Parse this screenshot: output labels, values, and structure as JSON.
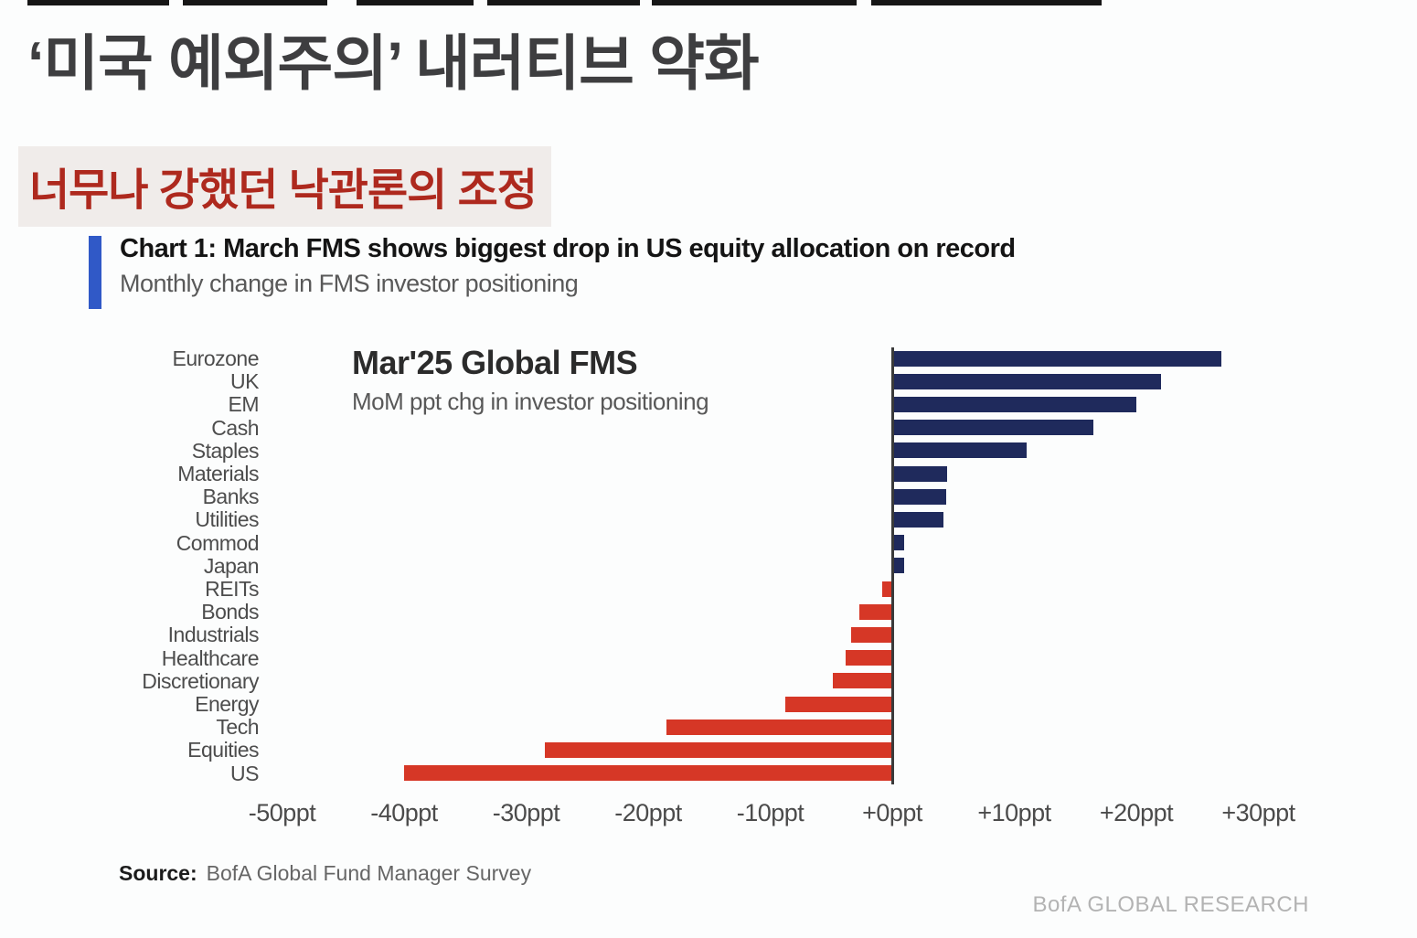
{
  "page": {
    "main_title": "‘미국 예외주의’ 내러티브 약화",
    "highlight_title": "너무나 강했던 낙관론의 조정"
  },
  "chart_header": {
    "title": "Chart 1: March FMS shows biggest drop in US equity allocation on record",
    "subtitle": "Monthly change in FMS investor positioning",
    "accent_color": "#3059c7"
  },
  "chart_data": {
    "type": "bar",
    "orientation": "horizontal",
    "title": "Mar'25 Global FMS",
    "subtitle": "MoM ppt chg in investor positioning",
    "categories": [
      "Eurozone",
      "UK",
      "EM",
      "Cash",
      "Staples",
      "Materials",
      "Banks",
      "Utilities",
      "Commod",
      "Japan",
      "REITs",
      "Bonds",
      "Industrials",
      "Healthcare",
      "Discretionary",
      "Energy",
      "Tech",
      "Equities",
      "US"
    ],
    "values": [
      27,
      22,
      20,
      16.5,
      11,
      4.5,
      4.4,
      4.2,
      1,
      1,
      -0.8,
      -2.7,
      -3.4,
      -3.8,
      -4.9,
      -8.8,
      -18.5,
      -28.5,
      -40
    ],
    "unit": "ppt",
    "x_tick_labels": [
      "-50ppt",
      "-40ppt",
      "-30ppt",
      "-20ppt",
      "-10ppt",
      "+0ppt",
      "+10ppt",
      "+20ppt",
      "+30ppt"
    ],
    "x_tick_values": [
      -50,
      -40,
      -30,
      -20,
      -10,
      0,
      10,
      20,
      30
    ],
    "xlim": [
      -50,
      33
    ],
    "grid": false,
    "legend": "none",
    "positive_color": "#1f2a5c",
    "negative_color": "#d63726",
    "axis_color": "#3a3a3a"
  },
  "source": {
    "label": "Source:",
    "text": "BofA Global Fund Manager Survey"
  },
  "footer": {
    "credit": "BofA GLOBAL RESEARCH"
  }
}
